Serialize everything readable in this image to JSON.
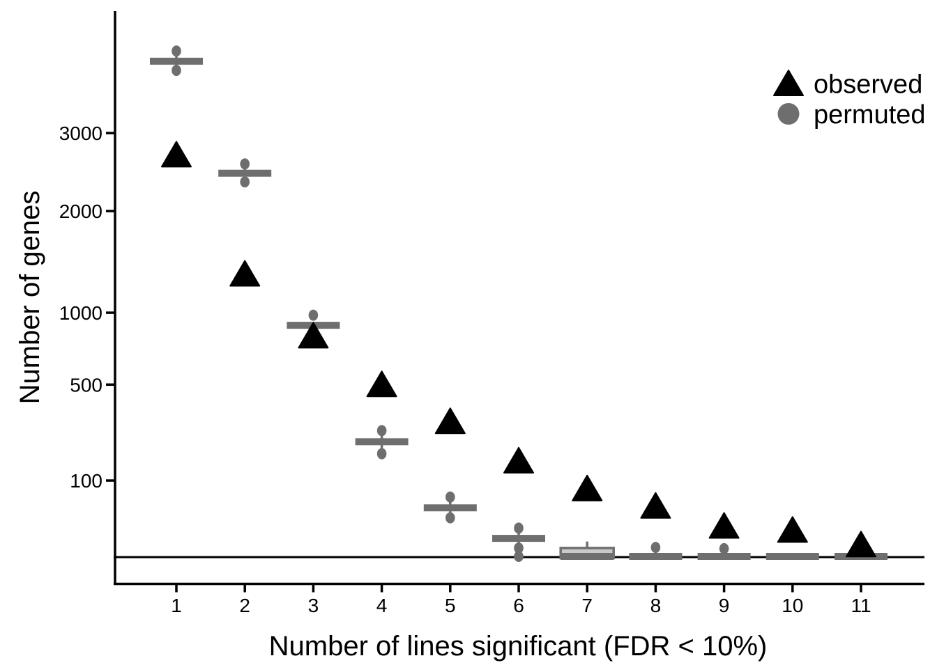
{
  "chart_data": {
    "type": "scatter+boxplot",
    "title": "",
    "xlabel": "Number of lines significant (FDR < 10%)",
    "ylabel": "Number of genes",
    "y_scale": "sqrt",
    "ylim": [
      0,
      4950
    ],
    "x_ticks": [
      1,
      2,
      3,
      4,
      5,
      6,
      7,
      8,
      9,
      10,
      11
    ],
    "y_ticks": [
      100,
      500,
      1000,
      2000,
      3000
    ],
    "hline": 0,
    "grid": "off",
    "legend_position": "top-right",
    "colors": {
      "observed": "#000000",
      "permuted": "#6e6e6e",
      "box_fill": "#c9c9c9",
      "axis": "#000000"
    },
    "legend": [
      {
        "label": "observed",
        "marker": "triangle",
        "color": "#000000"
      },
      {
        "label": "permuted",
        "marker": "circle",
        "color": "#6e6e6e"
      }
    ],
    "series": [
      {
        "name": "observed",
        "marker": "triangle",
        "color": "#000000",
        "x": [
          1,
          2,
          3,
          4,
          5,
          6,
          7,
          8,
          9,
          10,
          11
        ],
        "values": [
          2700,
          1340,
          820,
          500,
          310,
          157,
          80,
          45,
          17,
          13,
          3
        ]
      },
      {
        "name": "permuted",
        "marker": "circle",
        "color": "#6e6e6e",
        "boxplots": [
          {
            "x": 1,
            "median": 4100,
            "outliers": [
              4270,
              3950
            ]
          },
          {
            "x": 2,
            "median": 2460,
            "outliers": [
              2580,
              2350
            ]
          },
          {
            "x": 3,
            "median": 900,
            "outliers": [
              980
            ]
          },
          {
            "x": 4,
            "median": 225,
            "outliers": [
              270,
              181
            ]
          },
          {
            "x": 5,
            "median": 42,
            "outliers": [
              62,
              27
            ]
          },
          {
            "x": 6,
            "median": 6.5,
            "outliers": [
              15,
              1.7,
              0.05
            ]
          },
          {
            "x": 7,
            "median": 0.05,
            "box": [
              0,
              1.7
            ],
            "whisker_high": 4.6,
            "outliers": []
          },
          {
            "x": 8,
            "median": 0.05,
            "outliers": [
              1.9
            ]
          },
          {
            "x": 9,
            "median": 0.05,
            "outliers": [
              1.5
            ]
          },
          {
            "x": 10,
            "median": 0.05,
            "outliers": []
          },
          {
            "x": 11,
            "median": 0.05,
            "outliers": []
          }
        ]
      }
    ]
  }
}
